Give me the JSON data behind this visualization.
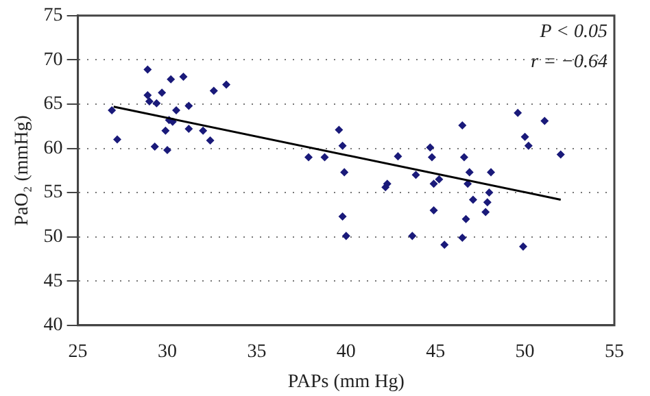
{
  "chart_data": {
    "type": "scatter",
    "xlabel": "PAPs (mm Hg)",
    "ylabel": "PaO₂ (mmHg)",
    "annotations": [
      "P < 0.05",
      "r = −0.64"
    ],
    "xlim": [
      25,
      55
    ],
    "xticks": [
      25,
      30,
      35,
      40,
      45,
      50,
      55
    ],
    "ylim": [
      40,
      75
    ],
    "yticks": [
      40,
      45,
      50,
      55,
      60,
      65,
      70,
      75
    ],
    "grid": "y",
    "marker": "diamond",
    "legend": false,
    "series": [
      {
        "type": "scatter",
        "color": "#1a1a7a",
        "x": [
          26.9,
          27.2,
          28.9,
          28.9,
          29.0,
          29.4,
          29.7,
          29.3,
          30.2,
          29.9,
          30.0,
          30.1,
          30.3,
          30.5,
          30.9,
          31.2,
          31.2,
          32.0,
          32.4,
          32.6,
          33.3,
          37.9,
          38.8,
          39.6,
          39.8,
          39.9,
          39.8,
          40.0,
          42.9,
          42.2,
          42.3,
          43.9,
          43.7,
          44.7,
          44.8,
          44.9,
          45.2,
          44.9,
          45.5,
          46.5,
          46.6,
          46.9,
          46.8,
          47.1,
          46.7,
          46.5,
          48.1,
          48.0,
          47.9,
          47.8,
          49.6,
          50.0,
          50.2,
          49.9,
          51.1,
          52.0
        ],
        "values": [
          64.3,
          61.0,
          68.9,
          66.0,
          65.3,
          65.1,
          66.3,
          60.2,
          67.8,
          62.0,
          59.8,
          63.2,
          63.0,
          64.3,
          68.1,
          64.8,
          62.2,
          62.0,
          60.9,
          66.5,
          67.2,
          59.0,
          59.0,
          62.1,
          60.3,
          57.3,
          52.3,
          50.1,
          59.1,
          55.6,
          56.0,
          57.0,
          50.1,
          60.1,
          59.0,
          56.0,
          56.5,
          53.0,
          49.1,
          62.6,
          59.0,
          57.3,
          56.0,
          54.2,
          52.0,
          49.9,
          57.3,
          55.0,
          53.9,
          52.8,
          64.0,
          61.3,
          60.3,
          48.9,
          63.1,
          59.3
        ]
      },
      {
        "type": "line",
        "color": "#000000",
        "marker": "none",
        "line_style": "solid",
        "x": [
          27,
          52
        ],
        "values": [
          64.7,
          54.2
        ]
      }
    ]
  }
}
